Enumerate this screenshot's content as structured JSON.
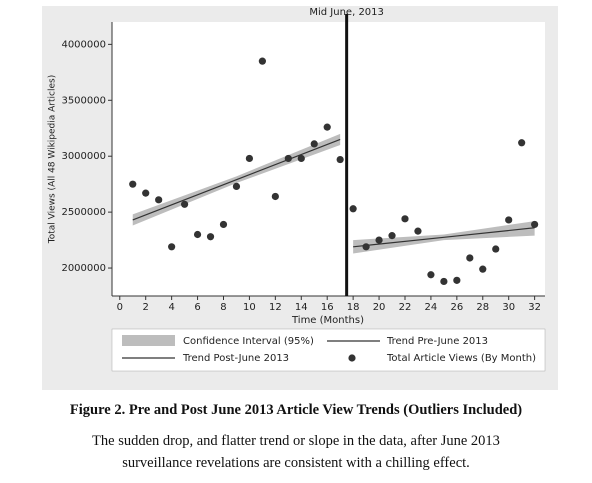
{
  "chart_data": {
    "type": "scatter",
    "annotation": "Mid June, 2013",
    "vline": 17.5,
    "x_label": "Time (Months)",
    "y_label": "Total Views (All 48 Wikipedia Articles)",
    "xlim": [
      -0.6,
      32.8
    ],
    "ylim": [
      1750000,
      4200000
    ],
    "xticks": [
      0,
      2,
      4,
      6,
      8,
      10,
      12,
      14,
      16,
      18,
      20,
      22,
      24,
      26,
      28,
      30,
      32
    ],
    "yticks": [
      2000000,
      2500000,
      3000000,
      3500000,
      4000000
    ],
    "x": [
      1,
      2,
      3,
      4,
      5,
      6,
      7,
      8,
      9,
      10,
      11,
      12,
      13,
      14,
      15,
      16,
      17,
      18,
      19,
      20,
      21,
      22,
      23,
      24,
      25,
      26,
      27,
      28,
      29,
      30,
      31,
      32
    ],
    "series": [
      {
        "name": "Total Article Views (By Month)",
        "color": "#333333",
        "values": [
          2750000,
          2670000,
          2610000,
          2190000,
          2570000,
          2300000,
          2280000,
          2390000,
          2730000,
          2980000,
          3850000,
          2640000,
          2980000,
          2980000,
          3110000,
          3260000,
          2970000,
          2530000,
          2190000,
          2250000,
          2290000,
          2440000,
          2330000,
          1940000,
          1880000,
          1890000,
          2090000,
          1990000,
          2170000,
          2430000,
          3120000,
          2390000
        ]
      }
    ],
    "confidence_interval": {
      "name": "Confidence Interval (95%)",
      "color": "#bdbdbd"
    },
    "trends": [
      {
        "name": "Trend Pre-June 2013",
        "color": "#333333",
        "x": [
          1,
          9,
          17
        ],
        "values": [
          2430000,
          2790000,
          3150000
        ],
        "lower": [
          2380000,
          2760000,
          3100000
        ],
        "upper": [
          2480000,
          2820000,
          3200000
        ]
      },
      {
        "name": "Trend Post-June 2013",
        "color": "#333333",
        "x": [
          18,
          25,
          32
        ],
        "values": [
          2190000,
          2275000,
          2360000
        ],
        "lower": [
          2130000,
          2250000,
          2290000
        ],
        "upper": [
          2250000,
          2300000,
          2420000
        ]
      }
    ]
  },
  "figure": {
    "title": "Figure 2. Pre and Post June 2013 Article View Trends (Outliers Included)",
    "caption": "The sudden drop, and flatter trend or slope in the data, after June 2013 surveillance revelations are consistent with a chilling effect."
  }
}
